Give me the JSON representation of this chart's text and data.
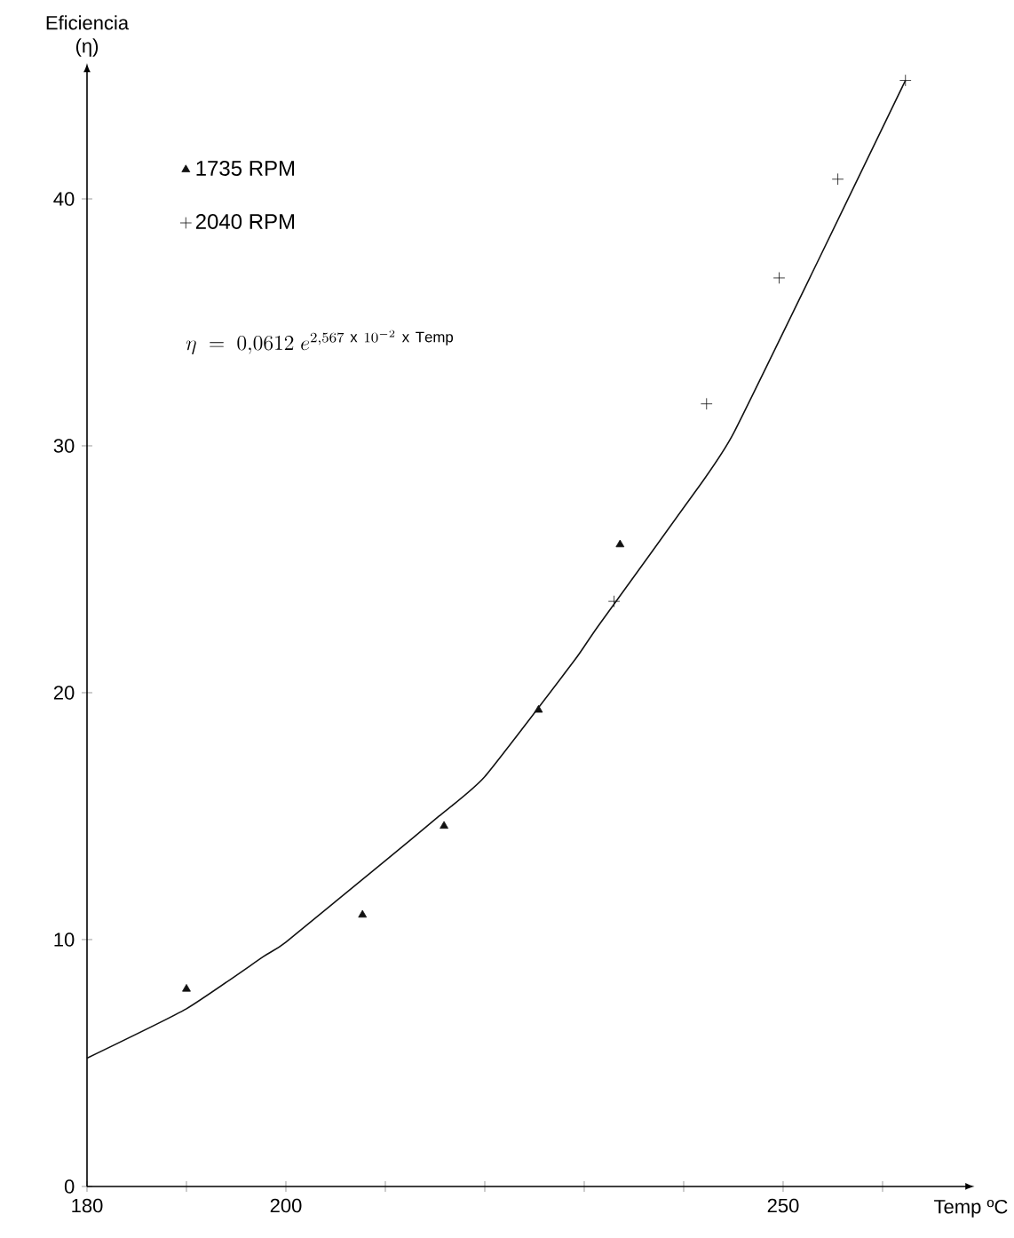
{
  "chart_data": {
    "type": "scatter",
    "xlabel": "Temp ºC",
    "ylabel": "Eficiencia (η)",
    "xlim": [
      180,
      268
    ],
    "ylim": [
      0,
      45
    ],
    "xticks": [
      180,
      {
        "value": 190,
        "label": null
      },
      200,
      {
        "value": 210,
        "label": null
      },
      {
        "value": 220,
        "label": null
      },
      {
        "value": 230,
        "label": null
      },
      {
        "value": 240,
        "label": null
      },
      250,
      {
        "value": 260,
        "label": null
      }
    ],
    "yticks": [
      0,
      10,
      20,
      30,
      40
    ],
    "grid": false,
    "legend": "top left",
    "annotations": [
      "\\eta\\ =\\ 0{,}0612\\ e^{2{,}567\\ \\mathrm{x}\\ 10^{-2}\\ \\mathrm{x\\ Temp}}"
    ],
    "series": [
      {
        "name": "1735 RPM",
        "marker": "triangle",
        "color": "#111111",
        "x": [
          190,
          207.7,
          215.9,
          225.4,
          233.6
        ],
        "values": [
          8.0,
          11.0,
          14.6,
          19.3,
          26.0
        ]
      },
      {
        "name": "2040 RPM",
        "marker": "cross",
        "color": "#111111",
        "x": [
          233,
          242.3,
          249.6,
          255.5,
          262.3
        ],
        "values": [
          23.7,
          31.7,
          36.8,
          40.8,
          44.8
        ]
      },
      {
        "type": "line",
        "marker": "none",
        "line_style": "solid",
        "color": "#111111",
        "x": [
          180,
          190,
          197.7,
          200,
          210,
          215.4,
          220,
          229,
          231.4,
          241.8,
          245,
          253.4,
          262.3
        ],
        "values": [
          5.2,
          7.2,
          9.3,
          9.9,
          13.2,
          15.0,
          16.6,
          21.3,
          22.7,
          28.5,
          30.5,
          37.4,
          44.8
        ]
      }
    ]
  }
}
